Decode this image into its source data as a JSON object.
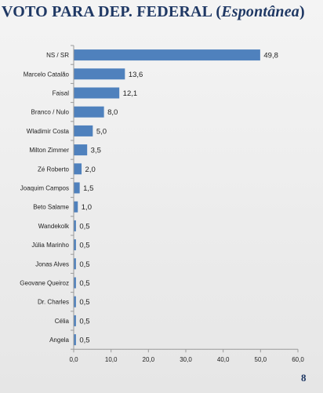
{
  "title": {
    "main": "VOTO  PARA DEP. FEDERAL (",
    "emphasis": "Espontânea",
    "close": ")"
  },
  "page_number": "8",
  "colors": {
    "bar": "#4f81bd",
    "title": "#1f3864",
    "axis": "#9a9a9a"
  },
  "chart_data": {
    "type": "bar",
    "orientation": "horizontal",
    "categories": [
      "NS / SR",
      "Marcelo Catalão",
      "Faisal",
      "Branco / Nulo",
      "Wladimir Costa",
      "Milton Zimmer",
      "Zé Roberto",
      "Joaquim Campos",
      "Beto Salame",
      "Wandekolk",
      "Júlia Marinho",
      "Jonas Alves",
      "Geovane Queiroz",
      "Dr. Charles",
      "Célia",
      "Angela"
    ],
    "values": [
      49.8,
      13.6,
      12.1,
      8.0,
      5.0,
      3.5,
      2.0,
      1.5,
      1.0,
      0.5,
      0.5,
      0.5,
      0.5,
      0.5,
      0.5,
      0.5
    ],
    "value_labels": [
      "49,8",
      "13,6",
      "12,1",
      "8,0",
      "5,0",
      "3,5",
      "2,0",
      "1,5",
      "1,0",
      "0,5",
      "0,5",
      "0,5",
      "0,5",
      "0,5",
      "0,5",
      "0,5"
    ],
    "xlim": [
      0,
      60
    ],
    "xticks": [
      0,
      10,
      20,
      30,
      40,
      50,
      60
    ],
    "xtick_labels": [
      "0,0",
      "10,0",
      "20,0",
      "30,0",
      "40,0",
      "50,0",
      "60,0"
    ],
    "grid": false,
    "legend": "none"
  }
}
